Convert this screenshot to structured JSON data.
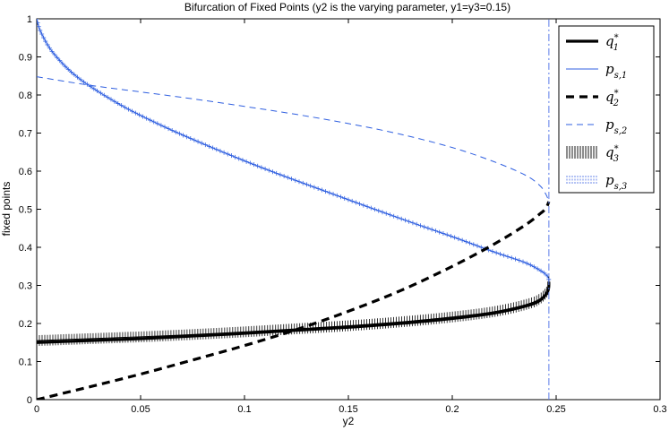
{
  "chart_data": {
    "type": "line",
    "title": "Bifurcation of Fixed Points (y2 is the varying parameter, y1=y3=0.15)",
    "xlabel": "y2",
    "ylabel": "fixed points",
    "xlim": [
      0,
      0.3
    ],
    "ylim": [
      0,
      1
    ],
    "xticks": [
      0,
      0.05,
      0.1,
      0.15,
      0.2,
      0.25,
      0.3
    ],
    "xtick_labels": [
      "0",
      "0.05",
      "0.1",
      "0.15",
      "0.2",
      "0.25",
      "0.3"
    ],
    "yticks": [
      0,
      0.1,
      0.2,
      0.3,
      0.4,
      0.5,
      0.6,
      0.7,
      0.8,
      0.9,
      1
    ],
    "ytick_labels": [
      "0",
      "0.1",
      "0.2",
      "0.3",
      "0.4",
      "0.5",
      "0.6",
      "0.7",
      "0.8",
      "0.9",
      "1"
    ],
    "grid": false,
    "legend_position": "top-right",
    "series": [
      {
        "name": "q1*",
        "legend_base": "q",
        "legend_sup": "*",
        "legend_sub": "1",
        "color": "#000000",
        "style": "solid-thick",
        "x": [
          0,
          0.025,
          0.05,
          0.075,
          0.1,
          0.125,
          0.15,
          0.175,
          0.2,
          0.22,
          0.235,
          0.242,
          0.246,
          0.2465
        ],
        "y": [
          0.15,
          0.155,
          0.16,
          0.167,
          0.174,
          0.182,
          0.19,
          0.2,
          0.213,
          0.227,
          0.245,
          0.26,
          0.285,
          0.31
        ]
      },
      {
        "name": "ps,1",
        "legend_base": "p",
        "legend_sup": "",
        "legend_sub": "s,1",
        "color": "#2f5fe0",
        "style": "solid-thin",
        "x": [
          0,
          0.002,
          0.008,
          0.02,
          0.04,
          0.06,
          0.08,
          0.1,
          0.12,
          0.14,
          0.16,
          0.18,
          0.2,
          0.22,
          0.235,
          0.243,
          0.246,
          0.2465
        ],
        "y": [
          1.0,
          0.965,
          0.91,
          0.845,
          0.775,
          0.72,
          0.672,
          0.627,
          0.585,
          0.545,
          0.505,
          0.466,
          0.428,
          0.388,
          0.36,
          0.337,
          0.323,
          0.31
        ]
      },
      {
        "name": "q2*",
        "legend_base": "q",
        "legend_sup": "*",
        "legend_sub": "2",
        "color": "#000000",
        "style": "dashed-thick",
        "x": [
          0,
          0.025,
          0.05,
          0.075,
          0.1,
          0.125,
          0.15,
          0.175,
          0.2,
          0.22,
          0.235,
          0.242,
          0.245,
          0.2465
        ],
        "y": [
          0.0,
          0.033,
          0.067,
          0.104,
          0.142,
          0.184,
          0.232,
          0.286,
          0.35,
          0.408,
          0.458,
          0.487,
          0.502,
          0.52
        ]
      },
      {
        "name": "ps,2",
        "legend_base": "p",
        "legend_sup": "",
        "legend_sub": "s,2",
        "color": "#2f5fe0",
        "style": "dashed-thin",
        "x": [
          0,
          0.025,
          0.05,
          0.075,
          0.1,
          0.125,
          0.15,
          0.175,
          0.2,
          0.22,
          0.235,
          0.242,
          0.245,
          0.2465
        ],
        "y": [
          0.848,
          0.826,
          0.808,
          0.79,
          0.77,
          0.749,
          0.725,
          0.697,
          0.662,
          0.625,
          0.59,
          0.563,
          0.54,
          0.52
        ]
      },
      {
        "name": "q3*",
        "legend_base": "q",
        "legend_sup": "*",
        "legend_sub": "3",
        "color": "#000000",
        "style": "vertical-ticks",
        "x": [
          0,
          0.025,
          0.05,
          0.075,
          0.1,
          0.125,
          0.15,
          0.175,
          0.2,
          0.22,
          0.235,
          0.242,
          0.246,
          0.2465
        ],
        "y": [
          0.155,
          0.16,
          0.165,
          0.171,
          0.178,
          0.186,
          0.194,
          0.204,
          0.217,
          0.231,
          0.249,
          0.264,
          0.288,
          0.31
        ]
      },
      {
        "name": "ps,3",
        "legend_base": "p",
        "legend_sup": "",
        "legend_sub": "s,3",
        "color": "#5a7be8",
        "style": "dashdot-vertical",
        "x": [
          0.2465,
          0.2465
        ],
        "y": [
          0,
          1
        ]
      }
    ]
  }
}
